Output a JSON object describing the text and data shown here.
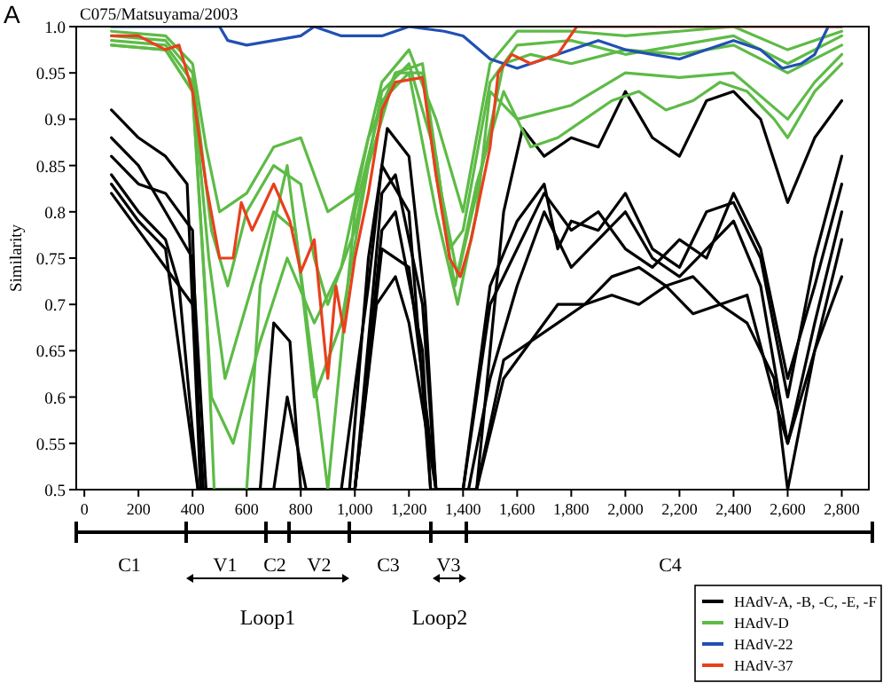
{
  "chart_data": {
    "type": "line",
    "title": "C075/Matsuyama/2003",
    "ylabel": "Similarity",
    "xlim": [
      -30,
      2900
    ],
    "ylim": [
      0.5,
      1.0
    ],
    "xticks": [
      0,
      200,
      400,
      600,
      800,
      {
        "value": 1000,
        "label": "1,000"
      },
      {
        "value": 1200,
        "label": "1,200"
      },
      {
        "value": 1400,
        "label": "1,400"
      },
      {
        "value": 1600,
        "label": "1,600"
      },
      {
        "value": 1800,
        "label": "1,800"
      },
      {
        "value": 2000,
        "label": "2,000"
      },
      {
        "value": 2200,
        "label": "2,200"
      },
      {
        "value": 2400,
        "label": "2,400"
      },
      {
        "value": 2600,
        "label": "2,600"
      },
      {
        "value": 2800,
        "label": "2,800"
      }
    ],
    "yticks": [
      0.5,
      0.55,
      0.6,
      0.65,
      0.7,
      0.75,
      0.8,
      0.85,
      0.9,
      0.95,
      {
        "value": 1,
        "label": "1.0"
      }
    ],
    "grid": false,
    "legend": "bottom right",
    "marker": "none",
    "line_style": "solid",
    "annotations": [
      "A",
      "C1",
      "V1",
      "C2",
      "V2",
      "C3",
      "V3",
      "C4",
      "Loop1",
      "Loop2"
    ],
    "series": [
      {
        "name": "HAdV-A, -B, -C, -E, -F",
        "color": "#000000",
        "x": [
          100,
          200,
          300,
          380,
          430,
          980,
          1050,
          1120,
          1200,
          1260,
          1300,
          1450,
          1550,
          1620,
          1700,
          1800,
          1900,
          2000,
          2100,
          2200,
          2300,
          2400,
          2500,
          2600,
          2700,
          2800
        ],
        "values": [
          0.91,
          0.88,
          0.86,
          0.83,
          0.5,
          0.5,
          0.75,
          0.89,
          0.86,
          0.7,
          0.5,
          0.5,
          0.8,
          0.89,
          0.86,
          0.88,
          0.87,
          0.93,
          0.88,
          0.86,
          0.92,
          0.93,
          0.9,
          0.81,
          0.88,
          0.92
        ]
      },
      {
        "color": "#000000",
        "x": [
          100,
          200,
          300,
          400,
          450,
          650,
          700,
          760,
          800,
          1000,
          1100,
          1150,
          1250,
          1300,
          1350,
          1400,
          1500,
          1600,
          1700,
          1750,
          1800,
          1900,
          2000,
          2100,
          2200,
          2300,
          2400,
          2500,
          2600,
          2700,
          2800
        ],
        "values": [
          0.88,
          0.85,
          0.8,
          0.75,
          0.5,
          0.5,
          0.68,
          0.66,
          0.5,
          0.5,
          0.82,
          0.84,
          0.7,
          0.5,
          0.5,
          0.5,
          0.72,
          0.79,
          0.83,
          0.76,
          0.79,
          0.78,
          0.82,
          0.76,
          0.74,
          0.8,
          0.81,
          0.75,
          0.6,
          0.75,
          0.86
        ]
      },
      {
        "color": "#000000",
        "x": [
          100,
          200,
          300,
          350,
          420,
          700,
          750,
          820,
          1000,
          1100,
          1150,
          1250,
          1280,
          1420,
          1500,
          1600,
          1700,
          1800,
          1900,
          2000,
          2100,
          2200,
          2300,
          2400,
          2500,
          2600,
          2700,
          2800
        ],
        "values": [
          0.84,
          0.8,
          0.77,
          0.72,
          0.5,
          0.5,
          0.6,
          0.5,
          0.5,
          0.78,
          0.8,
          0.65,
          0.5,
          0.5,
          0.62,
          0.72,
          0.8,
          0.74,
          0.77,
          0.8,
          0.75,
          0.73,
          0.76,
          0.79,
          0.72,
          0.55,
          0.68,
          0.8
        ]
      },
      {
        "color": "#000000",
        "x": [
          100,
          200,
          300,
          400,
          440,
          1000,
          1080,
          1150,
          1200,
          1300,
          1450,
          1550,
          1650,
          1750,
          1850,
          1950,
          2050,
          2150,
          2250,
          2350,
          2450,
          2550,
          2600,
          2700,
          2800
        ],
        "values": [
          0.82,
          0.78,
          0.74,
          0.7,
          0.5,
          0.5,
          0.7,
          0.73,
          0.68,
          0.5,
          0.5,
          0.62,
          0.66,
          0.68,
          0.7,
          0.71,
          0.7,
          0.72,
          0.69,
          0.7,
          0.68,
          0.62,
          0.5,
          0.65,
          0.73
        ]
      },
      {
        "color": "#000000",
        "x": [
          100,
          200,
          300,
          400,
          430,
          950,
          1050,
          1100,
          1200,
          1280,
          1400,
          1500,
          1600,
          1700,
          1800,
          1900,
          2000,
          2100,
          2200,
          2300,
          2400,
          2500,
          2600,
          2700,
          2800
        ],
        "values": [
          0.86,
          0.83,
          0.82,
          0.78,
          0.5,
          0.5,
          0.72,
          0.85,
          0.8,
          0.5,
          0.5,
          0.7,
          0.76,
          0.82,
          0.78,
          0.8,
          0.76,
          0.74,
          0.77,
          0.75,
          0.82,
          0.76,
          0.62,
          0.72,
          0.83
        ]
      },
      {
        "color": "#000000",
        "x": [
          100,
          200,
          300,
          420,
          1000,
          1100,
          1200,
          1300,
          1450,
          1550,
          1650,
          1750,
          1850,
          1950,
          2050,
          2150,
          2250,
          2350,
          2450,
          2550,
          2600,
          2700,
          2800
        ],
        "values": [
          0.83,
          0.79,
          0.76,
          0.5,
          0.5,
          0.76,
          0.74,
          0.5,
          0.5,
          0.64,
          0.66,
          0.7,
          0.7,
          0.73,
          0.74,
          0.72,
          0.73,
          0.7,
          0.71,
          0.6,
          0.55,
          0.65,
          0.77
        ]
      },
      {
        "name": "HAdV-D",
        "color": "#5dbb46",
        "x": [
          100,
          300,
          400,
          450,
          500,
          600,
          700,
          800,
          900,
          1000,
          1100,
          1200,
          1300,
          1400,
          1500,
          1600,
          1800,
          2000,
          2200,
          2400,
          2600,
          2800
        ],
        "values": [
          0.995,
          0.99,
          0.96,
          0.87,
          0.8,
          0.82,
          0.87,
          0.88,
          0.8,
          0.82,
          0.94,
          0.975,
          0.9,
          0.8,
          0.96,
          0.995,
          0.995,
          0.99,
          0.995,
          1.0,
          0.975,
          0.995
        ]
      },
      {
        "color": "#5dbb46",
        "x": [
          100,
          300,
          400,
          450,
          480,
          600,
          650,
          750,
          850,
          900,
          1000,
          1100,
          1200,
          1300,
          1380,
          1450,
          1500,
          1600,
          1800,
          2000,
          2200,
          2400,
          2600,
          2700,
          2800
        ],
        "values": [
          0.98,
          0.975,
          0.93,
          0.7,
          0.5,
          0.5,
          0.72,
          0.85,
          0.62,
          0.5,
          0.8,
          0.92,
          0.95,
          0.8,
          0.7,
          0.8,
          0.93,
          0.9,
          0.915,
          0.95,
          0.945,
          0.95,
          0.9,
          0.94,
          0.97
        ]
      },
      {
        "color": "#5dbb46",
        "x": [
          100,
          300,
          400,
          470,
          530,
          600,
          700,
          800,
          850,
          900,
          1000,
          1100,
          1200,
          1300,
          1350,
          1400,
          1500,
          1600,
          1800,
          2000,
          2200,
          2400,
          2600,
          2800
        ],
        "values": [
          0.99,
          0.985,
          0.95,
          0.78,
          0.72,
          0.8,
          0.85,
          0.83,
          0.75,
          0.7,
          0.78,
          0.93,
          0.96,
          0.86,
          0.76,
          0.78,
          0.94,
          0.98,
          0.985,
          0.97,
          0.98,
          0.99,
          0.96,
          0.99
        ]
      },
      {
        "color": "#5dbb46",
        "x": [
          100,
          300,
          400,
          460,
          520,
          600,
          700,
          780,
          850,
          950,
          1050,
          1150,
          1250,
          1320,
          1380,
          1450,
          1550,
          1650,
          1800,
          2000,
          2200,
          2400,
          2600,
          2800
        ],
        "values": [
          0.985,
          0.98,
          0.94,
          0.75,
          0.62,
          0.7,
          0.8,
          0.78,
          0.6,
          0.68,
          0.85,
          0.95,
          0.96,
          0.82,
          0.73,
          0.82,
          0.96,
          0.97,
          0.96,
          0.975,
          0.97,
          0.98,
          0.95,
          0.98
        ]
      },
      {
        "color": "#5dbb46",
        "x": [
          100,
          300,
          400,
          470,
          550,
          650,
          750,
          850,
          950,
          1050,
          1150,
          1250,
          1300,
          1370,
          1450,
          1550,
          1650,
          1750,
          1850,
          1950,
          2050,
          2150,
          2250,
          2350,
          2450,
          2550,
          2600,
          2700,
          2800
        ],
        "values": [
          0.98,
          0.975,
          0.93,
          0.6,
          0.55,
          0.66,
          0.75,
          0.68,
          0.74,
          0.88,
          0.95,
          0.95,
          0.84,
          0.72,
          0.83,
          0.93,
          0.87,
          0.88,
          0.9,
          0.92,
          0.93,
          0.91,
          0.92,
          0.94,
          0.93,
          0.9,
          0.88,
          0.93,
          0.96
        ]
      },
      {
        "name": "HAdV-22",
        "color": "#2150b4",
        "x": [
          100,
          500,
          530,
          600,
          700,
          800,
          850,
          950,
          1100,
          1200,
          1330,
          1400,
          1500,
          1600,
          1700,
          1800,
          1900,
          2000,
          2100,
          2200,
          2300,
          2400,
          2500,
          2580,
          2650,
          2700,
          2750,
          2800
        ],
        "values": [
          1.0,
          1.0,
          0.985,
          0.98,
          0.985,
          0.99,
          1.0,
          0.99,
          0.99,
          1.0,
          0.995,
          0.99,
          0.965,
          0.955,
          0.965,
          0.975,
          0.985,
          0.975,
          0.97,
          0.965,
          0.975,
          0.985,
          0.975,
          0.955,
          0.96,
          0.97,
          1.0,
          1.0
        ]
      },
      {
        "name": "HAdV-37",
        "color": "#e8401c",
        "x": [
          100,
          200,
          300,
          350,
          400,
          450,
          500,
          550,
          580,
          620,
          700,
          760,
          800,
          850,
          900,
          930,
          960,
          1000,
          1050,
          1100,
          1150,
          1250,
          1300,
          1350,
          1390,
          1430,
          1500,
          1530,
          1580,
          1650,
          1750,
          1820,
          2200,
          2500,
          2800
        ],
        "values": [
          0.99,
          0.99,
          0.975,
          0.98,
          0.93,
          0.83,
          0.75,
          0.75,
          0.81,
          0.78,
          0.83,
          0.79,
          0.735,
          0.77,
          0.62,
          0.72,
          0.67,
          0.75,
          0.82,
          0.91,
          0.94,
          0.945,
          0.84,
          0.75,
          0.73,
          0.77,
          0.87,
          0.95,
          0.97,
          0.96,
          0.97,
          1.0,
          1.0,
          1.0,
          1.0
        ]
      }
    ]
  }
}
